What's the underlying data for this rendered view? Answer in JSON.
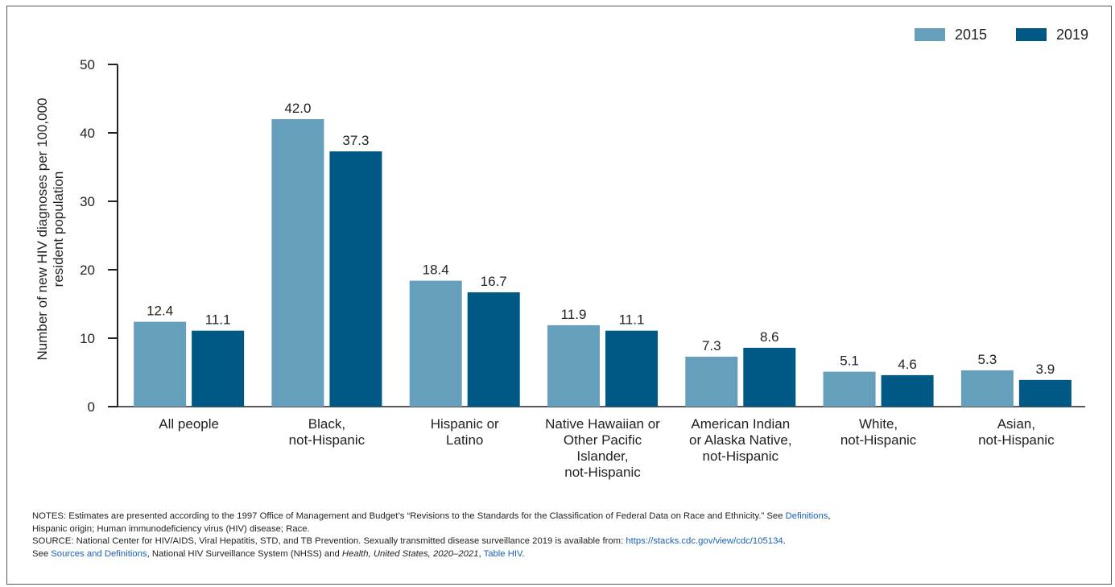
{
  "chart_data": {
    "type": "bar",
    "categories": [
      [
        "All people"
      ],
      [
        "Black,",
        "not-Hispanic"
      ],
      [
        "Hispanic or",
        "Latino"
      ],
      [
        "Native Hawaiian or",
        "Other Pacific",
        "Islander,",
        "not-Hispanic"
      ],
      [
        "American Indian",
        "or Alaska Native,",
        "not-Hispanic"
      ],
      [
        "White,",
        "not-Hispanic"
      ],
      [
        "Asian,",
        "not-Hispanic"
      ]
    ],
    "series": [
      {
        "name": "2015",
        "color": "#669fbb",
        "values": [
          12.4,
          42.0,
          18.4,
          11.9,
          7.3,
          5.1,
          5.3
        ],
        "labels": [
          "12.4",
          "42.0",
          "18.4",
          "11.9",
          "7.3",
          "5.1",
          "5.3"
        ]
      },
      {
        "name": "2019",
        "color": "#005984",
        "values": [
          11.1,
          37.3,
          16.7,
          11.1,
          8.6,
          4.6,
          3.9
        ],
        "labels": [
          "11.1",
          "37.3",
          "16.7",
          "11.1",
          "8.6",
          "4.6",
          "3.9"
        ]
      }
    ],
    "ylabel_lines": [
      "Number of new HIV diagnoses per 100,000",
      "resident population"
    ],
    "ylim": [
      0,
      50
    ],
    "yticks": [
      0,
      10,
      20,
      30,
      40,
      50
    ],
    "legend_position": "top-right",
    "grid": false
  },
  "notes": {
    "notes_prefix": "NOTES: Estimates are presented according to the 1997 Office of Management and Budget’s “Revisions to the Standards for the Classification of Federal Data on Race and Ethnicity.” See ",
    "definitions_link": "Definitions",
    "notes_after_link": ",",
    "notes_line2": "Hispanic origin; Human immunodeficiency virus (HIV) disease; Race.",
    "source_prefix": "SOURCE: National Center for HIV/AIDS, Viral Hepatitis, STD, and TB Prevention. Sexually transmitted disease surveillance 2019 is available from: ",
    "source_url": "https://stacks.cdc.gov/view/cdc/105134",
    "source_suffix": ".",
    "see_prefix": "See ",
    "sources_link": "Sources and Definitions",
    "see_middle": ", National HIV Surveillance System (NHSS) and ",
    "hus_italic": "Health, United States, 2020–2021",
    "see_comma": ", ",
    "table_link": "Table HIV",
    "see_end": "."
  }
}
